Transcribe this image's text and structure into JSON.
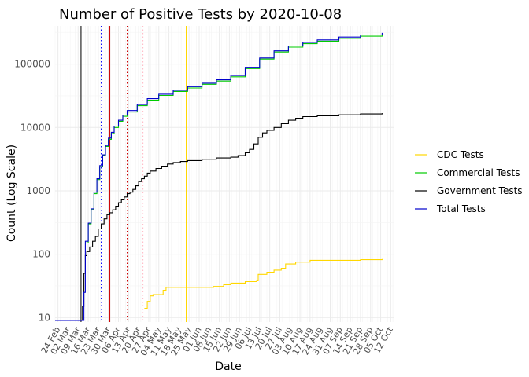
{
  "chart_data": {
    "type": "line",
    "title": "Number of Positive Tests by  2020-10-08",
    "xlabel": "Date",
    "ylabel": "Count (Log Scale)",
    "y_scale": "log10",
    "ylim": [
      8.5,
      400000
    ],
    "xlim_days": [
      -2,
      233
    ],
    "x_origin_date": "2020-02-24",
    "x_ticks": [
      {
        "label": "24 Feb",
        "day": 0
      },
      {
        "label": "02 Mar",
        "day": 7
      },
      {
        "label": "09 Mar",
        "day": 14
      },
      {
        "label": "16 Mar",
        "day": 21
      },
      {
        "label": "23 Mar",
        "day": 28
      },
      {
        "label": "30 Mar",
        "day": 35
      },
      {
        "label": "06 Apr",
        "day": 42
      },
      {
        "label": "13 Apr",
        "day": 49
      },
      {
        "label": "20 Apr",
        "day": 56
      },
      {
        "label": "27 Apr",
        "day": 63
      },
      {
        "label": "04 May",
        "day": 70
      },
      {
        "label": "11 May",
        "day": 77
      },
      {
        "label": "18 May",
        "day": 84
      },
      {
        "label": "25 May",
        "day": 91
      },
      {
        "label": "01 Jun",
        "day": 98
      },
      {
        "label": "08 Jun",
        "day": 105
      },
      {
        "label": "15 Jun",
        "day": 112
      },
      {
        "label": "22 Jun",
        "day": 119
      },
      {
        "label": "29 Jun",
        "day": 126
      },
      {
        "label": "06 Jul",
        "day": 133
      },
      {
        "label": "13 Jul",
        "day": 140
      },
      {
        "label": "20 Jul",
        "day": 147
      },
      {
        "label": "27 Jul",
        "day": 154
      },
      {
        "label": "03 Aug",
        "day": 161
      },
      {
        "label": "10 Aug",
        "day": 168
      },
      {
        "label": "17 Aug",
        "day": 175
      },
      {
        "label": "24 Aug",
        "day": 182
      },
      {
        "label": "31 Aug",
        "day": 189
      },
      {
        "label": "07 Sep",
        "day": 196
      },
      {
        "label": "14 Sep",
        "day": 203
      },
      {
        "label": "21 Sep",
        "day": 210
      },
      {
        "label": "28 Sep",
        "day": 217
      },
      {
        "label": "05 Oct",
        "day": 224
      },
      {
        "label": "12 Oct",
        "day": 231
      }
    ],
    "y_ticks": [
      {
        "label": "10",
        "value": 10
      },
      {
        "label": "100",
        "value": 100
      },
      {
        "label": "1000",
        "value": 1000
      },
      {
        "label": "10000",
        "value": 10000
      },
      {
        "label": "100000",
        "value": 100000
      }
    ],
    "vlines": [
      {
        "day": 16,
        "color": "#000000",
        "dash": "solid"
      },
      {
        "day": 30,
        "color": "#0000ff",
        "dash": "dotted"
      },
      {
        "day": 36,
        "color": "#cc0000",
        "dash": "solid"
      },
      {
        "day": 48,
        "color": "#cc0000",
        "dash": "dotted"
      },
      {
        "day": 59,
        "color": "#ffb6c1",
        "dash": "dotted"
      },
      {
        "day": 89,
        "color": "#ffd700",
        "dash": "solid"
      }
    ],
    "legend_position": "right",
    "series": [
      {
        "name": "CDC Tests",
        "color": "#ffd700",
        "points": [
          [
            60,
            14
          ],
          [
            62,
            18
          ],
          [
            64,
            22
          ],
          [
            66,
            23
          ],
          [
            70,
            23
          ],
          [
            73,
            27
          ],
          [
            75,
            30
          ],
          [
            85,
            30
          ],
          [
            100,
            30
          ],
          [
            108,
            31
          ],
          [
            115,
            33
          ],
          [
            120,
            35
          ],
          [
            130,
            37
          ],
          [
            138,
            38
          ],
          [
            139,
            48
          ],
          [
            145,
            52
          ],
          [
            150,
            56
          ],
          [
            155,
            60
          ],
          [
            158,
            70
          ],
          [
            165,
            75
          ],
          [
            175,
            80
          ],
          [
            195,
            80
          ],
          [
            210,
            82
          ],
          [
            225,
            84
          ]
        ]
      },
      {
        "name": "Commercial Tests",
        "color": "#00cc00",
        "points": [
          [
            19,
            150
          ],
          [
            21,
            300
          ],
          [
            23,
            500
          ],
          [
            25,
            900
          ],
          [
            27,
            1500
          ],
          [
            29,
            2400
          ],
          [
            31,
            3600
          ],
          [
            33,
            5000
          ],
          [
            35,
            6500
          ],
          [
            37,
            8000
          ],
          [
            39,
            10000
          ],
          [
            42,
            12500
          ],
          [
            45,
            15000
          ],
          [
            48,
            17500
          ],
          [
            55,
            22000
          ],
          [
            62,
            27000
          ],
          [
            70,
            32000
          ],
          [
            80,
            37000
          ],
          [
            90,
            42000
          ],
          [
            100,
            48000
          ],
          [
            110,
            54000
          ],
          [
            120,
            63000
          ],
          [
            130,
            85000
          ],
          [
            140,
            120000
          ],
          [
            150,
            155000
          ],
          [
            160,
            185000
          ],
          [
            170,
            210000
          ],
          [
            180,
            230000
          ],
          [
            195,
            255000
          ],
          [
            210,
            275000
          ],
          [
            225,
            295000
          ]
        ]
      },
      {
        "name": "Government Tests",
        "color": "#000000",
        "points": [
          [
            -2,
            9
          ],
          [
            14,
            9
          ],
          [
            16,
            9
          ],
          [
            17,
            15
          ],
          [
            18,
            50
          ],
          [
            19,
            95
          ],
          [
            20,
            110
          ],
          [
            22,
            130
          ],
          [
            24,
            160
          ],
          [
            26,
            190
          ],
          [
            28,
            250
          ],
          [
            30,
            300
          ],
          [
            32,
            360
          ],
          [
            34,
            420
          ],
          [
            36,
            450
          ],
          [
            38,
            500
          ],
          [
            40,
            570
          ],
          [
            42,
            650
          ],
          [
            44,
            720
          ],
          [
            46,
            800
          ],
          [
            48,
            900
          ],
          [
            50,
            950
          ],
          [
            52,
            1050
          ],
          [
            54,
            1200
          ],
          [
            56,
            1400
          ],
          [
            58,
            1550
          ],
          [
            60,
            1700
          ],
          [
            62,
            1900
          ],
          [
            64,
            2050
          ],
          [
            68,
            2250
          ],
          [
            72,
            2450
          ],
          [
            76,
            2650
          ],
          [
            80,
            2800
          ],
          [
            85,
            2900
          ],
          [
            90,
            3000
          ],
          [
            100,
            3150
          ],
          [
            110,
            3300
          ],
          [
            120,
            3400
          ],
          [
            125,
            3600
          ],
          [
            130,
            4000
          ],
          [
            133,
            4500
          ],
          [
            136,
            5500
          ],
          [
            139,
            7000
          ],
          [
            142,
            8200
          ],
          [
            145,
            9000
          ],
          [
            150,
            10000
          ],
          [
            155,
            11500
          ],
          [
            160,
            13000
          ],
          [
            165,
            14000
          ],
          [
            170,
            14800
          ],
          [
            180,
            15300
          ],
          [
            195,
            15800
          ],
          [
            210,
            16300
          ],
          [
            225,
            16800
          ]
        ]
      },
      {
        "name": "Total Tests",
        "color": "#0000cc",
        "points": [
          [
            -2,
            9
          ],
          [
            14,
            9
          ],
          [
            17,
            9
          ],
          [
            18,
            25
          ],
          [
            19,
            160
          ],
          [
            21,
            310
          ],
          [
            23,
            520
          ],
          [
            25,
            950
          ],
          [
            27,
            1550
          ],
          [
            29,
            2500
          ],
          [
            31,
            3700
          ],
          [
            33,
            5200
          ],
          [
            35,
            6800
          ],
          [
            37,
            8400
          ],
          [
            39,
            10500
          ],
          [
            42,
            13000
          ],
          [
            45,
            15700
          ],
          [
            48,
            18500
          ],
          [
            55,
            23000
          ],
          [
            62,
            28500
          ],
          [
            70,
            33500
          ],
          [
            80,
            38500
          ],
          [
            90,
            44000
          ],
          [
            100,
            50000
          ],
          [
            110,
            56500
          ],
          [
            120,
            66000
          ],
          [
            130,
            89000
          ],
          [
            140,
            125000
          ],
          [
            150,
            162000
          ],
          [
            160,
            193000
          ],
          [
            170,
            220000
          ],
          [
            180,
            241000
          ],
          [
            195,
            267000
          ],
          [
            210,
            288000
          ],
          [
            225,
            310000
          ]
        ]
      }
    ]
  }
}
